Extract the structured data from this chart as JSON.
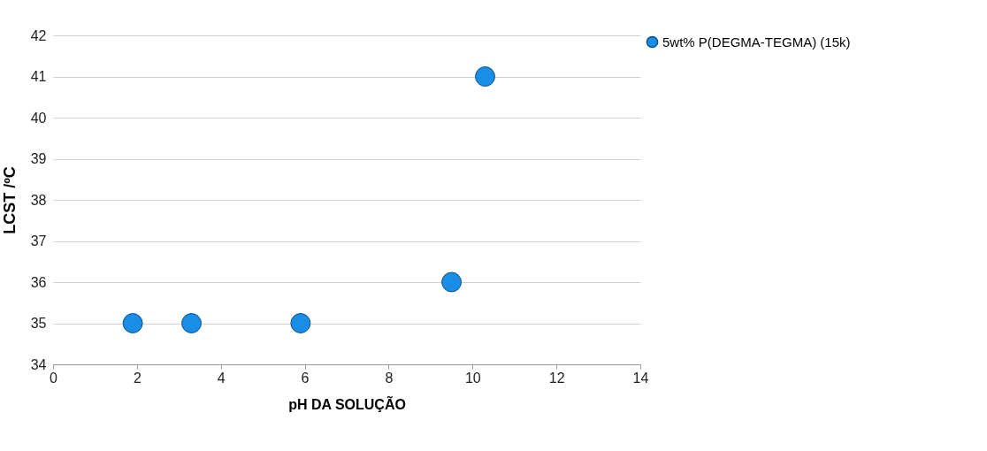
{
  "chart_data": {
    "type": "scatter",
    "xlabel": "pH DA SOLUÇÃO",
    "ylabel": "LCST /ºC",
    "x": [
      1.9,
      3.3,
      5.9,
      9.5,
      10.3
    ],
    "series": [
      {
        "name": "5wt% P(DEGMA-TEGMA) (15k)",
        "color": "#1a8ee6",
        "values": [
          35,
          35,
          35,
          36,
          41
        ]
      }
    ],
    "xlim": [
      0,
      14
    ],
    "xticks": [
      0,
      2,
      4,
      6,
      8,
      10,
      12,
      14
    ],
    "ylim": [
      34,
      42
    ],
    "yticks": [
      34,
      35,
      36,
      37,
      38,
      39,
      40,
      41,
      42
    ],
    "grid": "y",
    "legend": "right",
    "marker": "circle"
  }
}
